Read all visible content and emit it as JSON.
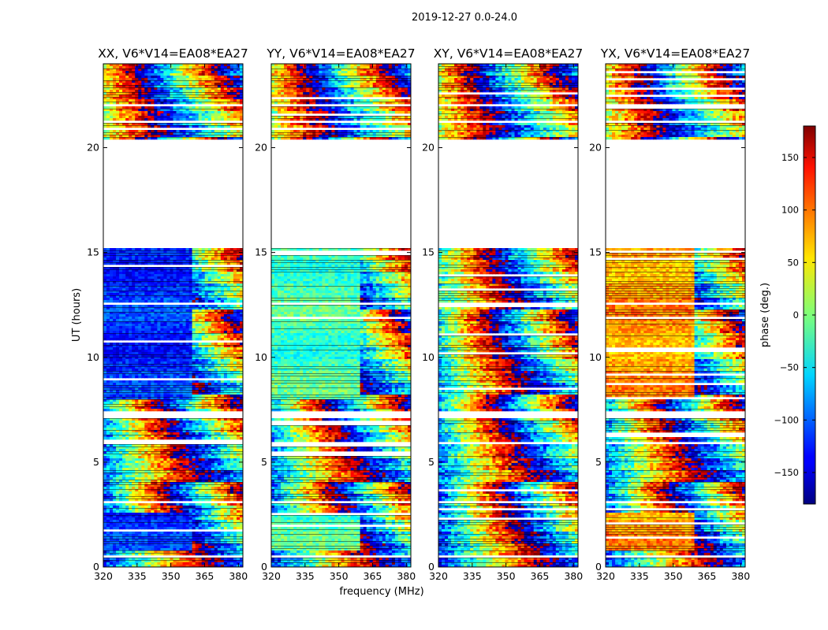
{
  "chart_data": {
    "type": "heatmap",
    "suptitle": "2019-12-27 0.0-24.0",
    "xlabel": "frequency (MHz)",
    "ylabel": "UT (hours)",
    "xlim": [
      320,
      382
    ],
    "ylim": [
      0,
      24
    ],
    "x_ticks": [
      320,
      335,
      350,
      365,
      380
    ],
    "y_ticks": [
      0,
      5,
      10,
      15,
      20
    ],
    "panels": [
      {
        "title": "XX, V6*V14=EA08*EA27",
        "baseline": -120
      },
      {
        "title": "YY, V6*V14=EA08*EA27",
        "baseline": -20
      },
      {
        "title": "XY, V6*V14=EA08*EA27",
        "baseline": -90
      },
      {
        "title": "YX, V6*V14=EA08*EA27",
        "baseline": 80
      }
    ],
    "flagged_ut_ranges": [
      [
        15.3,
        20.5
      ],
      [
        22.05,
        22.15
      ],
      [
        21.25,
        21.35
      ],
      [
        12.55,
        12.65
      ],
      [
        7.1,
        7.5
      ],
      [
        5.9,
        6.0
      ],
      [
        3.05,
        3.2
      ],
      [
        0.5,
        0.6
      ]
    ],
    "colorbar": {
      "label": "phase (deg.)",
      "range": [
        -180,
        180
      ],
      "ticks": [
        150,
        100,
        50,
        0,
        -50,
        -100,
        -150
      ],
      "tick_labels": [
        "150",
        "100",
        "50",
        "0",
        "−50",
        "−100",
        "−150"
      ],
      "colormap": "jet"
    }
  }
}
